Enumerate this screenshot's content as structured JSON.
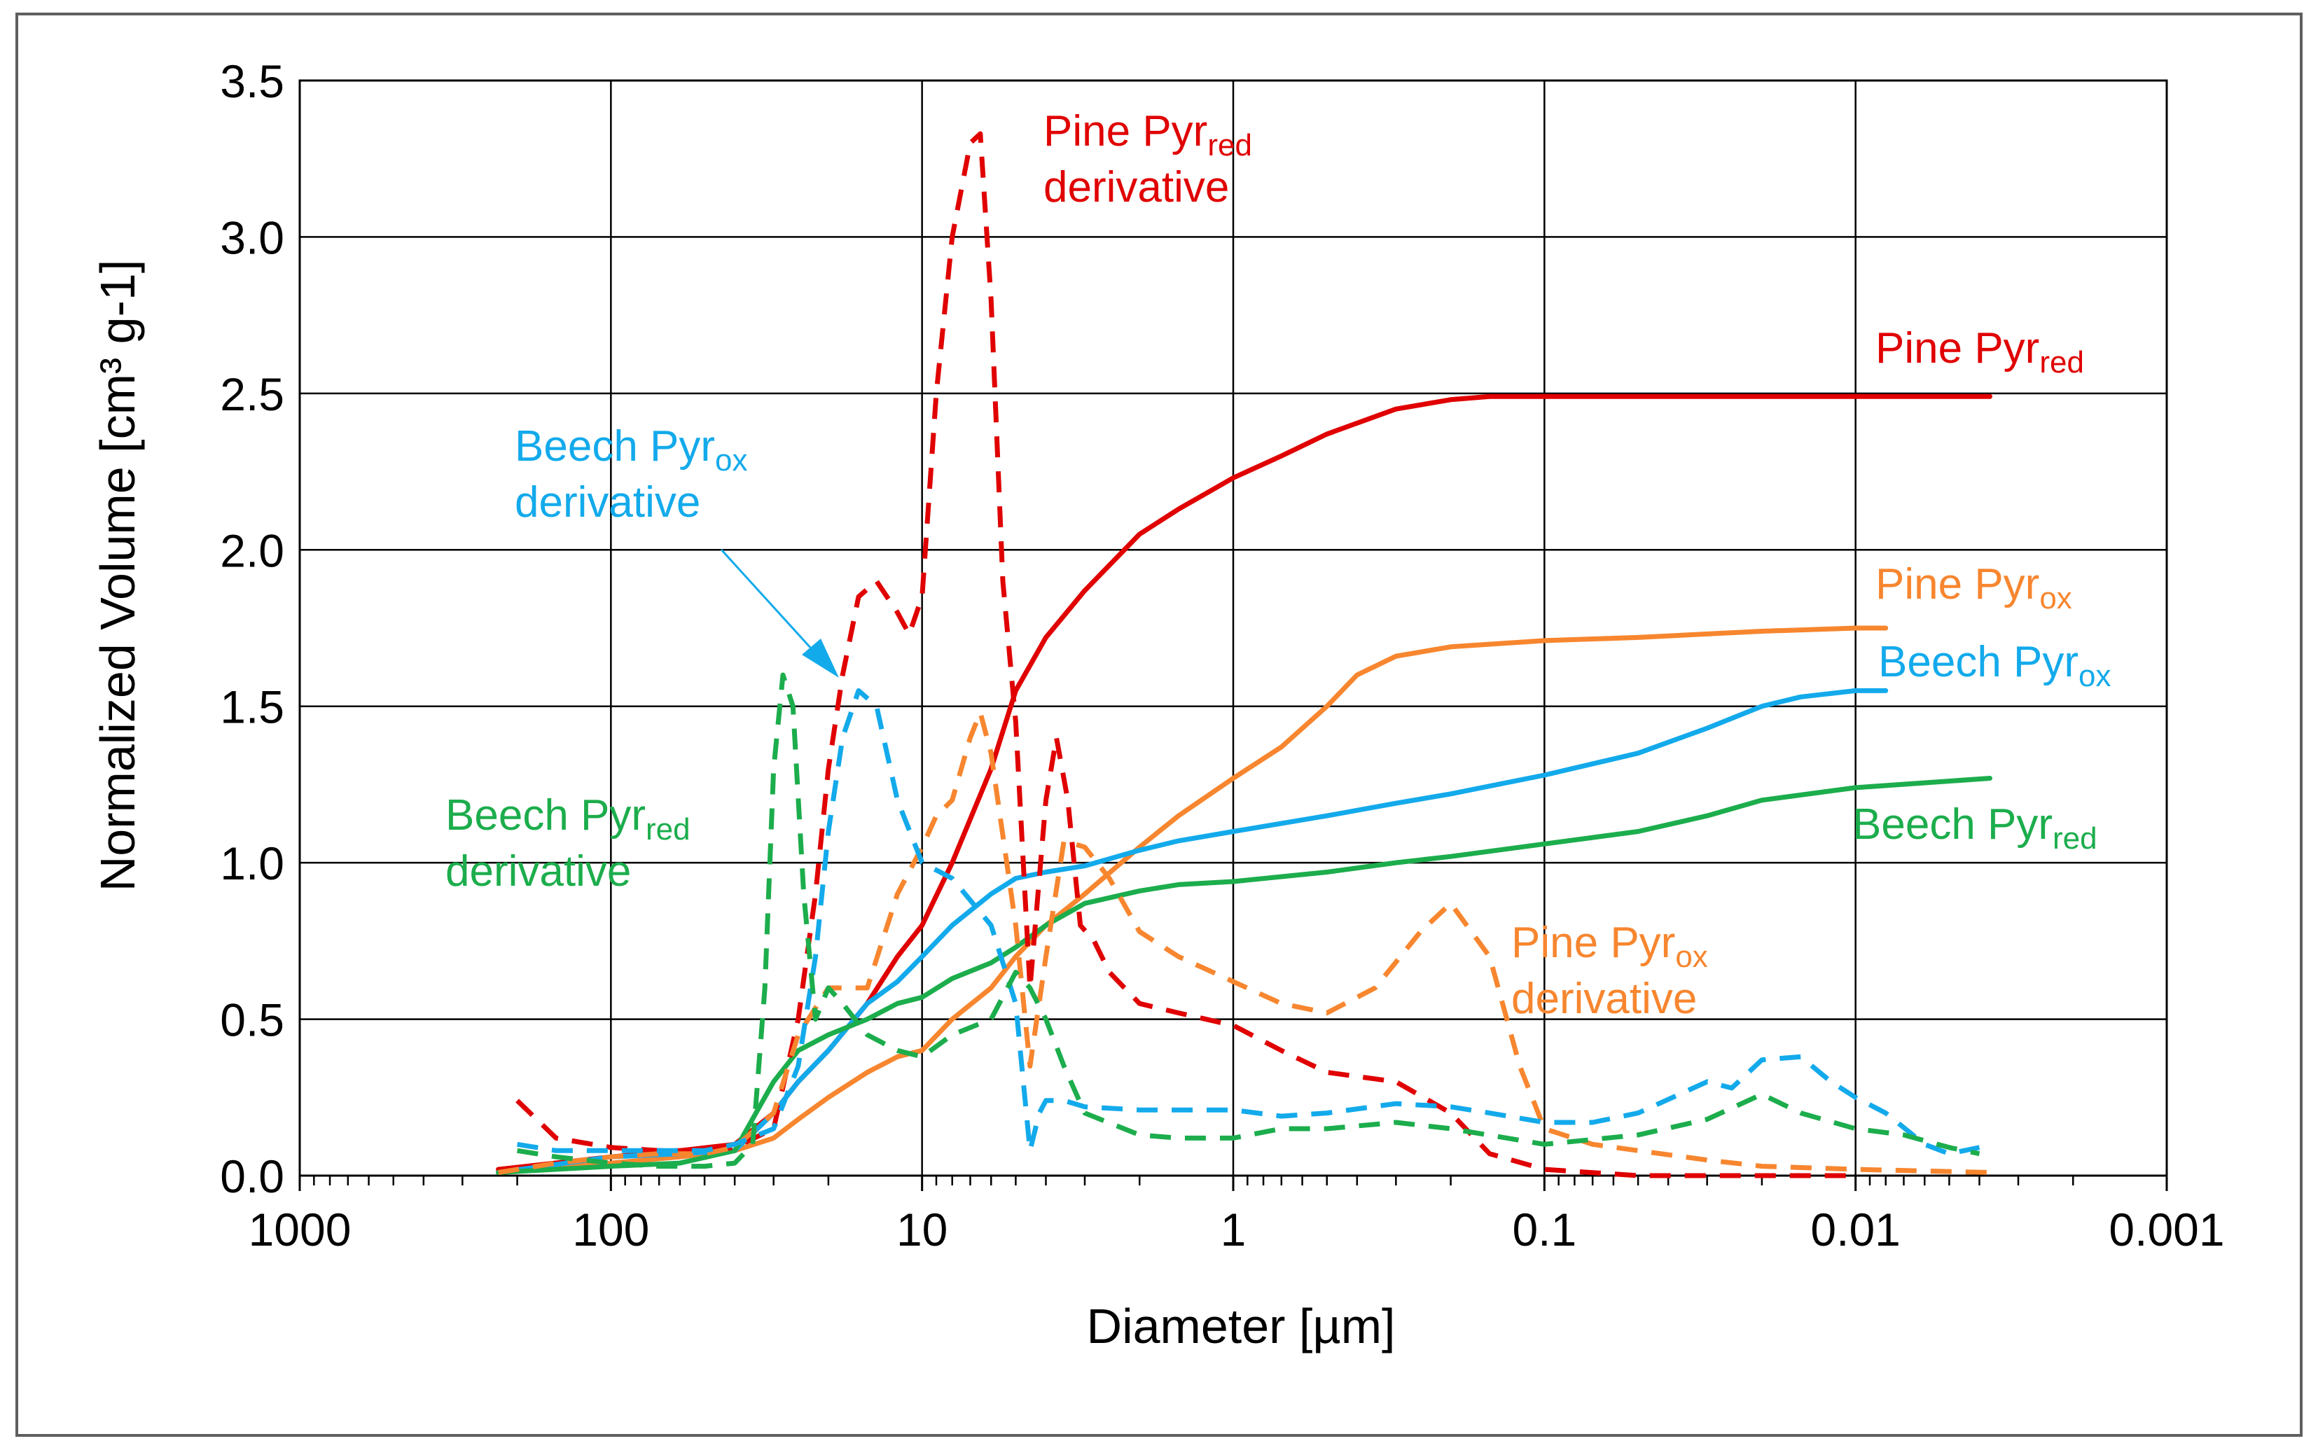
{
  "chart_data": {
    "type": "line",
    "title": "",
    "xlabel": "Diameter [µm]",
    "ylabel": "Normalized Volume [cm³ g-1]",
    "xscale": "log",
    "xreversed": true,
    "xlim": [
      1000,
      0.001
    ],
    "ylim": [
      0,
      3.5
    ],
    "grid": true,
    "x_ticks": [
      {
        "value": 1000,
        "label": "1000"
      },
      {
        "value": 100,
        "label": "100"
      },
      {
        "value": 10,
        "label": "10"
      },
      {
        "value": 1,
        "label": "1"
      },
      {
        "value": 0.1,
        "label": "0.1"
      },
      {
        "value": 0.01,
        "label": "0.01"
      },
      {
        "value": 0.001,
        "label": "0.001"
      }
    ],
    "y_ticks": [
      {
        "value": 0,
        "label": "0.0"
      },
      {
        "value": 0.5,
        "label": "0.5"
      },
      {
        "value": 1,
        "label": "1.0"
      },
      {
        "value": 1.5,
        "label": "1.5"
      },
      {
        "value": 2,
        "label": "2.0"
      },
      {
        "value": 2.5,
        "label": "2.5"
      },
      {
        "value": 3,
        "label": "3.0"
      },
      {
        "value": 3.5,
        "label": "3.5"
      }
    ],
    "colors": {
      "pine_red": "#e00000",
      "pine_ox": "#f7862f",
      "beech_ox": "#13aaeb",
      "beech_red": "#1cad4c",
      "grid": "#000000",
      "text": "#000000"
    },
    "series": [
      {
        "id": "pine-pyr-red",
        "name": "Pine Pyr_red",
        "color_key": "pine_red",
        "style": "solid",
        "x": [
          230,
          100,
          60,
          40,
          30,
          25,
          20,
          15,
          12,
          10,
          8,
          6,
          5,
          4,
          3,
          2,
          1.5,
          1,
          0.7,
          0.5,
          0.3,
          0.2,
          0.15,
          0.1,
          0.05,
          0.01,
          0.0037
        ],
        "y": [
          0.02,
          0.06,
          0.08,
          0.1,
          0.2,
          0.3,
          0.4,
          0.55,
          0.7,
          0.8,
          1.0,
          1.3,
          1.55,
          1.72,
          1.87,
          2.05,
          2.13,
          2.23,
          2.3,
          2.37,
          2.45,
          2.48,
          2.49,
          2.49,
          2.49,
          2.49,
          2.49
        ]
      },
      {
        "id": "pine-pyr-ox",
        "name": "Pine Pyr_ox",
        "color_key": "pine_ox",
        "style": "solid",
        "x": [
          230,
          100,
          60,
          40,
          30,
          25,
          20,
          15,
          12,
          10,
          8,
          6,
          5,
          4,
          3,
          2,
          1.5,
          1,
          0.7,
          0.5,
          0.4,
          0.3,
          0.2,
          0.1,
          0.05,
          0.02,
          0.01,
          0.008
        ],
        "y": [
          0.01,
          0.04,
          0.06,
          0.08,
          0.12,
          0.18,
          0.25,
          0.33,
          0.38,
          0.4,
          0.5,
          0.6,
          0.7,
          0.8,
          0.9,
          1.05,
          1.15,
          1.27,
          1.37,
          1.5,
          1.6,
          1.66,
          1.69,
          1.71,
          1.72,
          1.74,
          1.75,
          1.75
        ]
      },
      {
        "id": "beech-pyr-ox",
        "name": "Beech Pyr_ox",
        "color_key": "beech_ox",
        "style": "solid",
        "x": [
          230,
          100,
          60,
          40,
          30,
          25,
          20,
          15,
          12,
          10,
          8,
          6,
          5,
          4,
          3,
          2,
          1.5,
          1,
          0.5,
          0.3,
          0.2,
          0.1,
          0.05,
          0.03,
          0.02,
          0.015,
          0.01,
          0.008
        ],
        "y": [
          0.01,
          0.06,
          0.07,
          0.08,
          0.2,
          0.3,
          0.4,
          0.55,
          0.62,
          0.7,
          0.8,
          0.9,
          0.95,
          0.97,
          0.99,
          1.04,
          1.07,
          1.1,
          1.15,
          1.19,
          1.22,
          1.28,
          1.35,
          1.43,
          1.5,
          1.53,
          1.55,
          1.55
        ]
      },
      {
        "id": "beech-pyr-red",
        "name": "Beech Pyr_red",
        "color_key": "beech_red",
        "style": "solid",
        "x": [
          230,
          100,
          60,
          40,
          30,
          25,
          20,
          15,
          12,
          10,
          8,
          6,
          5,
          4,
          3,
          2,
          1.5,
          1,
          0.5,
          0.3,
          0.2,
          0.1,
          0.05,
          0.03,
          0.02,
          0.01,
          0.0037
        ],
        "y": [
          0.01,
          0.03,
          0.04,
          0.08,
          0.3,
          0.4,
          0.45,
          0.5,
          0.55,
          0.57,
          0.63,
          0.68,
          0.73,
          0.8,
          0.87,
          0.91,
          0.93,
          0.94,
          0.97,
          1.0,
          1.02,
          1.06,
          1.1,
          1.15,
          1.2,
          1.24,
          1.27
        ]
      },
      {
        "id": "pine-pyr-red-derivative",
        "name": "Pine Pyr_red derivative",
        "color_key": "pine_red",
        "style": "dashed",
        "x": [
          200,
          150,
          100,
          70,
          50,
          40,
          30,
          25,
          22,
          20,
          18,
          16,
          14,
          12,
          11,
          10,
          9,
          8,
          7,
          6.5,
          6,
          5.5,
          5,
          4.5,
          4,
          3.7,
          3.4,
          3.1,
          2.8,
          2.5,
          2,
          1.5,
          1,
          0.7,
          0.5,
          0.3,
          0.2,
          0.15,
          0.1,
          0.05,
          0.01
        ],
        "y": [
          0.24,
          0.12,
          0.09,
          0.08,
          0.08,
          0.09,
          0.15,
          0.5,
          0.9,
          1.3,
          1.6,
          1.85,
          1.9,
          1.8,
          1.73,
          1.85,
          2.5,
          3.0,
          3.3,
          3.33,
          2.8,
          1.9,
          1.45,
          0.6,
          1.2,
          1.4,
          1.2,
          0.8,
          0.75,
          0.65,
          0.55,
          0.52,
          0.48,
          0.4,
          0.33,
          0.3,
          0.2,
          0.07,
          0.02,
          0.0,
          0.0
        ]
      },
      {
        "id": "pine-pyr-ox-derivative",
        "name": "Pine Pyr_ox derivative",
        "color_key": "pine_ox",
        "style": "dashed",
        "x": [
          230,
          150,
          100,
          70,
          50,
          40,
          30,
          25,
          20,
          15,
          12,
          10,
          9,
          8,
          7,
          6.5,
          6,
          5,
          4.5,
          4,
          3.5,
          3,
          2.5,
          2,
          1.5,
          1,
          0.7,
          0.5,
          0.35,
          0.25,
          0.2,
          0.15,
          0.12,
          0.1,
          0.07,
          0.05,
          0.03,
          0.02,
          0.01,
          0.0037
        ],
        "y": [
          0.01,
          0.04,
          0.06,
          0.07,
          0.07,
          0.09,
          0.2,
          0.45,
          0.6,
          0.6,
          0.9,
          1.05,
          1.15,
          1.2,
          1.4,
          1.48,
          1.35,
          0.8,
          0.35,
          0.7,
          1.07,
          1.05,
          0.95,
          0.78,
          0.7,
          0.62,
          0.55,
          0.52,
          0.6,
          0.78,
          0.87,
          0.7,
          0.35,
          0.15,
          0.1,
          0.08,
          0.05,
          0.03,
          0.02,
          0.01
        ]
      },
      {
        "id": "beech-pyr-ox-derivative",
        "name": "Beech Pyr_ox derivative",
        "color_key": "beech_ox",
        "style": "dashed",
        "x": [
          200,
          150,
          100,
          70,
          50,
          40,
          30,
          25,
          22,
          20,
          18,
          16,
          14,
          12,
          10,
          8,
          6,
          5,
          4.5,
          4.2,
          4,
          3.5,
          3,
          2,
          1.5,
          1,
          0.7,
          0.5,
          0.3,
          0.2,
          0.15,
          0.1,
          0.07,
          0.05,
          0.03,
          0.025,
          0.02,
          0.015,
          0.012,
          0.01,
          0.008,
          0.006,
          0.005,
          0.004
        ],
        "y": [
          0.1,
          0.08,
          0.08,
          0.08,
          0.08,
          0.1,
          0.15,
          0.35,
          0.7,
          1.1,
          1.4,
          1.55,
          1.5,
          1.2,
          1.0,
          0.95,
          0.8,
          0.55,
          0.08,
          0.2,
          0.24,
          0.24,
          0.22,
          0.21,
          0.21,
          0.21,
          0.19,
          0.2,
          0.23,
          0.22,
          0.2,
          0.17,
          0.17,
          0.2,
          0.3,
          0.28,
          0.37,
          0.38,
          0.3,
          0.25,
          0.2,
          0.1,
          0.07,
          0.09
        ]
      },
      {
        "id": "beech-pyr-red-derivative",
        "name": "Beech Pyr_red derivative",
        "color_key": "beech_red",
        "style": "dashed",
        "x": [
          200,
          150,
          100,
          70,
          50,
          40,
          35,
          32,
          30,
          28,
          26,
          24,
          22,
          20,
          18,
          15,
          12,
          10,
          8,
          6,
          5,
          4.5,
          4,
          3.5,
          3,
          2,
          1.5,
          1,
          0.7,
          0.5,
          0.3,
          0.2,
          0.1,
          0.05,
          0.03,
          0.02,
          0.015,
          0.01,
          0.007,
          0.005,
          0.004
        ],
        "y": [
          0.08,
          0.06,
          0.04,
          0.03,
          0.03,
          0.04,
          0.1,
          0.6,
          1.3,
          1.6,
          1.5,
          0.9,
          0.5,
          0.6,
          0.55,
          0.45,
          0.4,
          0.38,
          0.45,
          0.5,
          0.65,
          0.6,
          0.5,
          0.35,
          0.2,
          0.13,
          0.12,
          0.12,
          0.15,
          0.15,
          0.17,
          0.15,
          0.1,
          0.13,
          0.18,
          0.26,
          0.2,
          0.15,
          0.13,
          0.09,
          0.07
        ]
      }
    ],
    "annotations": [
      {
        "id": "label-pine-red-derivative",
        "text": "Pine Pyr",
        "sub": "red",
        "line2": "derivative",
        "color_key": "pine_red"
      },
      {
        "id": "label-pine-red",
        "text": "Pine Pyr",
        "sub": "red",
        "line2": "",
        "color_key": "pine_red"
      },
      {
        "id": "label-beech-ox-derivative",
        "text": "Beech Pyr",
        "sub": "ox",
        "line2": "derivative",
        "color_key": "beech_ox"
      },
      {
        "id": "label-pine-ox",
        "text": "Pine Pyr",
        "sub": "ox",
        "line2": "",
        "color_key": "pine_ox"
      },
      {
        "id": "label-beech-ox",
        "text": "Beech Pyr",
        "sub": "ox",
        "line2": "",
        "color_key": "beech_ox"
      },
      {
        "id": "label-beech-red-derivative",
        "text": "Beech Pyr",
        "sub": "red",
        "line2": "derivative",
        "color_key": "beech_red"
      },
      {
        "id": "label-beech-red",
        "text": "Beech Pyr",
        "sub": "red",
        "line2": "",
        "color_key": "beech_red"
      },
      {
        "id": "label-pine-ox-derivative",
        "text": "Pine Pyr",
        "sub": "ox",
        "line2": "derivative",
        "color_key": "pine_ox"
      }
    ]
  }
}
